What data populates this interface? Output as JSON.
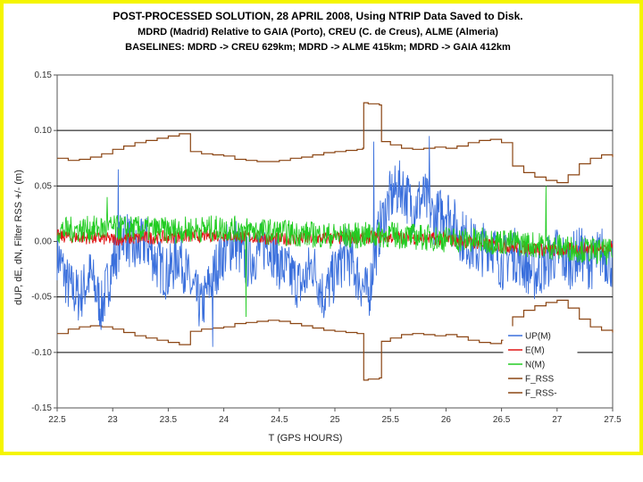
{
  "chart_data": {
    "type": "line",
    "title_lines": [
      "POST-PROCESSED SOLUTION, 28 APRIL 2008, Using NTRIP Data Saved to Disk.",
      "MDRD (Madrid) Relative to GAIA (Porto), CREU (C. de Creus), ALME (Almeria)",
      "BASELINES: MDRD -> CREU 629km; MDRD -> ALME 415km; MDRD -> GAIA  412km"
    ],
    "xlabel": "T (GPS HOURS)",
    "ylabel": "dUP, dE, dN, Filter RSS +/-  (m)",
    "xlim": [
      22.5,
      27.5
    ],
    "ylim": [
      -0.15,
      0.15
    ],
    "x_ticks": [
      22.5,
      23,
      23.5,
      24,
      24.5,
      25,
      25.5,
      26,
      26.5,
      27,
      27.5
    ],
    "x_tick_labels": [
      "22.5",
      "23",
      "23.5",
      "24",
      "24.5",
      "25",
      "25.5",
      "26",
      "26.5",
      "27",
      "27.5"
    ],
    "y_ticks": [
      -0.15,
      -0.1,
      -0.05,
      0.0,
      0.05,
      0.1,
      0.15
    ],
    "y_tick_labels": [
      "-0.15",
      "-0.10",
      "-0.05",
      "0.00",
      "0.05",
      "0.10",
      "0.15"
    ],
    "gridlines_y": [
      -0.1,
      -0.05,
      0.05,
      0.1
    ],
    "legend_position": "bottom-right",
    "series": [
      {
        "name": "UP(M)",
        "color": "#3a6fdc",
        "x": [
          22.5,
          22.6,
          22.7,
          22.8,
          22.9,
          23.0,
          23.1,
          23.2,
          23.3,
          23.4,
          23.5,
          23.6,
          23.7,
          23.8,
          23.9,
          24.0,
          24.1,
          24.2,
          24.3,
          24.4,
          24.5,
          24.6,
          24.7,
          24.8,
          24.9,
          25.0,
          25.1,
          25.2,
          25.3,
          25.4,
          25.5,
          25.6,
          25.7,
          25.8,
          25.9,
          26.0,
          26.1,
          26.2,
          26.3,
          26.4,
          26.5,
          26.6,
          26.7,
          26.8,
          26.9,
          27.0,
          27.1,
          27.2,
          27.3,
          27.4,
          27.5
        ],
        "values": [
          -0.01,
          -0.04,
          -0.05,
          -0.03,
          -0.06,
          -0.02,
          0.01,
          -0.01,
          0.0,
          -0.02,
          -0.03,
          -0.01,
          -0.04,
          -0.06,
          -0.03,
          -0.01,
          0.0,
          -0.02,
          -0.01,
          0.0,
          -0.02,
          -0.03,
          -0.04,
          -0.02,
          -0.05,
          -0.03,
          -0.01,
          -0.03,
          -0.05,
          0.01,
          0.04,
          0.05,
          0.03,
          0.04,
          0.02,
          0.03,
          0.01,
          0.0,
          -0.01,
          0.0,
          -0.02,
          -0.01,
          -0.02,
          -0.03,
          -0.02,
          -0.01,
          -0.02,
          -0.01,
          -0.02,
          -0.01,
          -0.02
        ],
        "amplitude": 0.025
      },
      {
        "name": "E(M)",
        "color": "#e01515",
        "x": [
          22.5,
          23.0,
          23.5,
          24.0,
          24.5,
          25.0,
          25.5,
          26.0,
          26.5,
          27.0,
          27.5
        ],
        "values": [
          0.005,
          0.002,
          0.004,
          0.006,
          0.002,
          0.003,
          0.004,
          0.002,
          -0.004,
          -0.008,
          -0.005
        ],
        "amplitude": 0.006
      },
      {
        "name": "N(M)",
        "color": "#22cc22",
        "x": [
          22.5,
          23.0,
          23.5,
          24.0,
          24.5,
          25.0,
          25.5,
          26.0,
          26.5,
          27.0,
          27.5
        ],
        "values": [
          0.01,
          0.012,
          0.01,
          0.012,
          0.008,
          0.005,
          0.006,
          0.002,
          0.0,
          -0.005,
          -0.01
        ],
        "amplitude": 0.012
      },
      {
        "name": "F_RSS",
        "color": "#8b4513",
        "x": [
          22.5,
          22.6,
          22.7,
          22.8,
          22.9,
          23.0,
          23.1,
          23.2,
          23.3,
          23.4,
          23.5,
          23.6,
          23.7,
          23.8,
          23.9,
          24.0,
          24.1,
          24.2,
          24.3,
          24.4,
          24.5,
          24.6,
          24.7,
          24.8,
          24.9,
          25.0,
          25.1,
          25.2,
          25.25,
          25.26,
          25.3,
          25.4,
          25.42,
          25.5,
          25.6,
          25.7,
          25.8,
          25.9,
          26.0,
          26.1,
          26.2,
          26.3,
          26.4,
          26.5,
          26.6,
          26.7,
          26.8,
          26.9,
          27.0,
          27.1,
          27.2,
          27.3,
          27.4,
          27.5
        ],
        "values": [
          0.075,
          0.073,
          0.074,
          0.076,
          0.079,
          0.083,
          0.086,
          0.089,
          0.091,
          0.093,
          0.095,
          0.097,
          0.081,
          0.079,
          0.078,
          0.077,
          0.074,
          0.073,
          0.072,
          0.072,
          0.073,
          0.075,
          0.076,
          0.078,
          0.08,
          0.081,
          0.082,
          0.083,
          0.084,
          0.125,
          0.124,
          0.123,
          0.09,
          0.087,
          0.084,
          0.083,
          0.084,
          0.085,
          0.084,
          0.086,
          0.089,
          0.091,
          0.092,
          0.089,
          0.068,
          0.062,
          0.058,
          0.055,
          0.053,
          0.06,
          0.07,
          0.075,
          0.078,
          0.076
        ]
      },
      {
        "name": "F_RSS-",
        "color": "#8b4513",
        "x": [
          22.5,
          22.6,
          22.7,
          22.8,
          22.9,
          23.0,
          23.1,
          23.2,
          23.3,
          23.4,
          23.5,
          23.6,
          23.7,
          23.8,
          23.9,
          24.0,
          24.1,
          24.2,
          24.3,
          24.4,
          24.5,
          24.6,
          24.7,
          24.8,
          24.9,
          25.0,
          25.1,
          25.2,
          25.25,
          25.26,
          25.3,
          25.4,
          25.42,
          25.5,
          25.6,
          25.7,
          25.8,
          25.9,
          26.0,
          26.1,
          26.2,
          26.3,
          26.4,
          26.5,
          26.6,
          26.7,
          26.8,
          26.9,
          27.0,
          27.1,
          27.2,
          27.3,
          27.4,
          27.5
        ],
        "values": [
          -0.083,
          -0.079,
          -0.077,
          -0.076,
          -0.077,
          -0.079,
          -0.082,
          -0.085,
          -0.087,
          -0.089,
          -0.091,
          -0.093,
          -0.081,
          -0.079,
          -0.078,
          -0.077,
          -0.074,
          -0.073,
          -0.072,
          -0.071,
          -0.072,
          -0.074,
          -0.076,
          -0.078,
          -0.08,
          -0.081,
          -0.082,
          -0.083,
          -0.083,
          -0.125,
          -0.124,
          -0.123,
          -0.09,
          -0.087,
          -0.084,
          -0.083,
          -0.084,
          -0.085,
          -0.084,
          -0.086,
          -0.089,
          -0.091,
          -0.092,
          -0.089,
          -0.068,
          -0.062,
          -0.058,
          -0.055,
          -0.053,
          -0.06,
          -0.07,
          -0.077,
          -0.08,
          -0.082
        ]
      }
    ],
    "spikes": [
      {
        "series": "UP(M)",
        "x": 23.05,
        "value": 0.065
      },
      {
        "series": "UP(M)",
        "x": 23.9,
        "value": -0.095
      },
      {
        "series": "UP(M)",
        "x": 25.35,
        "value": 0.09
      },
      {
        "series": "UP(M)",
        "x": 25.85,
        "value": 0.095
      },
      {
        "series": "N(M)",
        "x": 24.2,
        "value": -0.068
      },
      {
        "series": "N(M)",
        "x": 26.9,
        "value": 0.05
      },
      {
        "series": "N(M)",
        "x": 22.95,
        "value": 0.04
      }
    ]
  }
}
